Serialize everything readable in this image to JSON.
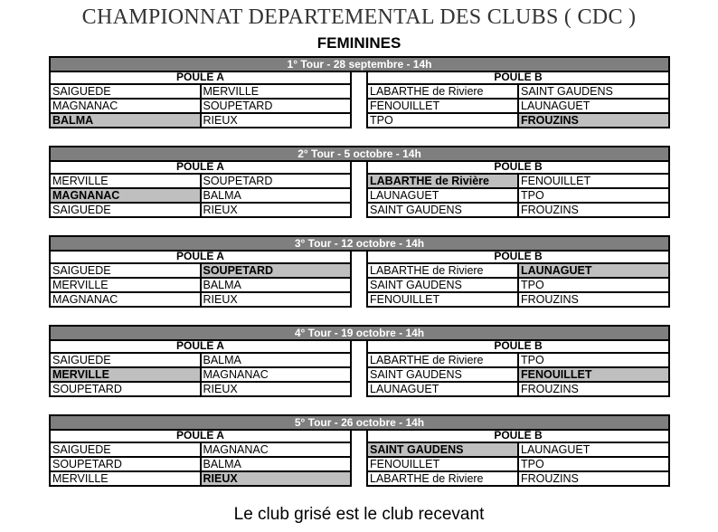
{
  "title": "CHAMPIONNAT DEPARTEMENTAL DES CLUBS ( CDC )",
  "subtitle": "FEMININES",
  "footer": "Le club grisé est le club recevant",
  "colors": {
    "header_bar": "#7f7f7f",
    "home_cell": "#bfbfbf"
  },
  "tours": [
    {
      "label": "1° Tour - 28 septembre - 14h",
      "poule_a": {
        "label": "POULE A",
        "matches": [
          {
            "home": "SAIGUEDE",
            "away": "MERVILLE",
            "hl": -1
          },
          {
            "home": "MAGNANAC",
            "away": "SOUPETARD",
            "hl": -1
          },
          {
            "home": "BALMA",
            "away": "RIEUX",
            "hl": 0
          }
        ]
      },
      "poule_b": {
        "label": "POULE B",
        "matches": [
          {
            "home": "LABARTHE de Riviere",
            "away": "SAINT GAUDENS",
            "hl": -1
          },
          {
            "home": "FENOUILLET",
            "away": "LAUNAGUET",
            "hl": -1
          },
          {
            "home": "TPO",
            "away": "FROUZINS",
            "hl": 1
          }
        ]
      }
    },
    {
      "label": "2° Tour - 5 octobre - 14h",
      "poule_a": {
        "label": "POULE A",
        "matches": [
          {
            "home": "MERVILLE",
            "away": "SOUPETARD",
            "hl": -1
          },
          {
            "home": "MAGNANAC",
            "away": "BALMA",
            "hl": 0
          },
          {
            "home": "SAIGUEDE",
            "away": "RIEUX",
            "hl": -1
          }
        ]
      },
      "poule_b": {
        "label": "POULE B",
        "matches": [
          {
            "home": "LABARTHE de Rivière",
            "away": "FENOUILLET",
            "hl": 0
          },
          {
            "home": "LAUNAGUET",
            "away": "TPO",
            "hl": -1
          },
          {
            "home": "SAINT GAUDENS",
            "away": "FROUZINS",
            "hl": -1
          }
        ]
      }
    },
    {
      "label": "3° Tour - 12 octobre - 14h",
      "poule_a": {
        "label": "POULE A",
        "matches": [
          {
            "home": "SAIGUEDE",
            "away": "SOUPETARD",
            "hl": 1
          },
          {
            "home": "MERVILLE",
            "away": "BALMA",
            "hl": -1
          },
          {
            "home": "MAGNANAC",
            "away": "RIEUX",
            "hl": -1
          }
        ]
      },
      "poule_b": {
        "label": "POULE B",
        "matches": [
          {
            "home": "LABARTHE de Riviere",
            "away": "LAUNAGUET",
            "hl": 1
          },
          {
            "home": "SAINT GAUDENS",
            "away": "TPO",
            "hl": -1
          },
          {
            "home": "FENOUILLET",
            "away": "FROUZINS",
            "hl": -1
          }
        ]
      }
    },
    {
      "label": "4° Tour - 19 octobre - 14h",
      "poule_a": {
        "label": "POULE A",
        "matches": [
          {
            "home": "SAIGUEDE",
            "away": "BALMA",
            "hl": -1
          },
          {
            "home": "MERVILLE",
            "away": "MAGNANAC",
            "hl": 0
          },
          {
            "home": "SOUPETARD",
            "away": "RIEUX",
            "hl": -1
          }
        ]
      },
      "poule_b": {
        "label": "POULE B",
        "matches": [
          {
            "home": "LABARTHE de Riviere",
            "away": "TPO",
            "hl": -1
          },
          {
            "home": "SAINT GAUDENS",
            "away": "FENOUILLET",
            "hl": 1
          },
          {
            "home": "LAUNAGUET",
            "away": "FROUZINS",
            "hl": -1
          }
        ]
      }
    },
    {
      "label": "5° Tour - 26 octobre - 14h",
      "poule_a": {
        "label": "POULE A",
        "matches": [
          {
            "home": "SAIGUEDE",
            "away": "MAGNANAC",
            "hl": -1
          },
          {
            "home": "SOUPETARD",
            "away": "BALMA",
            "hl": -1
          },
          {
            "home": "MERVILLE",
            "away": "RIEUX",
            "hl": 1
          }
        ]
      },
      "poule_b": {
        "label": "POULE B",
        "matches": [
          {
            "home": "SAINT GAUDENS",
            "away": "LAUNAGUET",
            "hl": 0
          },
          {
            "home": "FENOUILLET",
            "away": "TPO",
            "hl": -1
          },
          {
            "home": "LABARTHE de Riviere",
            "away": "FROUZINS",
            "hl": -1
          }
        ]
      }
    }
  ]
}
